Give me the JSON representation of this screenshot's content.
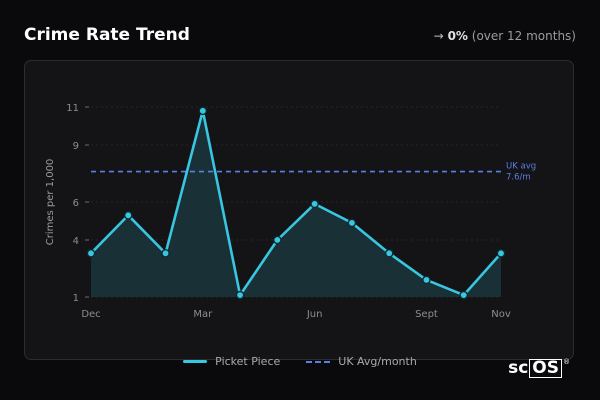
{
  "header": {
    "title": "Crime Rate Trend",
    "change_arrow": "→",
    "change_pct": "0%",
    "change_note": "(over 12 months)"
  },
  "chart_data": {
    "type": "line",
    "ylabel": "Crimes per 1,000",
    "ylim": [
      1,
      11
    ],
    "yticks": [
      1,
      4,
      6,
      9,
      11
    ],
    "x_labels": [
      {
        "index": 0,
        "label": "Dec"
      },
      {
        "index": 3,
        "label": "Mar"
      },
      {
        "index": 6,
        "label": "Jun"
      },
      {
        "index": 9,
        "label": "Sept"
      },
      {
        "index": 11,
        "label": "Nov"
      }
    ],
    "series": [
      {
        "name": "Picket Piece",
        "color": "#38c6e0",
        "values": [
          3.3,
          5.3,
          3.3,
          10.8,
          1.1,
          4.0,
          5.9,
          4.9,
          3.3,
          1.9,
          1.1,
          3.3
        ]
      }
    ],
    "reference": {
      "name": "UK Avg/month",
      "value": 7.6,
      "label_line1": "UK avg",
      "label_line2": "7.6/m",
      "color": "#5a7fe6"
    },
    "grid": true
  },
  "legend": {
    "series_label": "Picket Piece",
    "reference_label": "UK Avg/month"
  },
  "logo": {
    "left": "sc",
    "boxed": "OS",
    "mark": "®"
  }
}
